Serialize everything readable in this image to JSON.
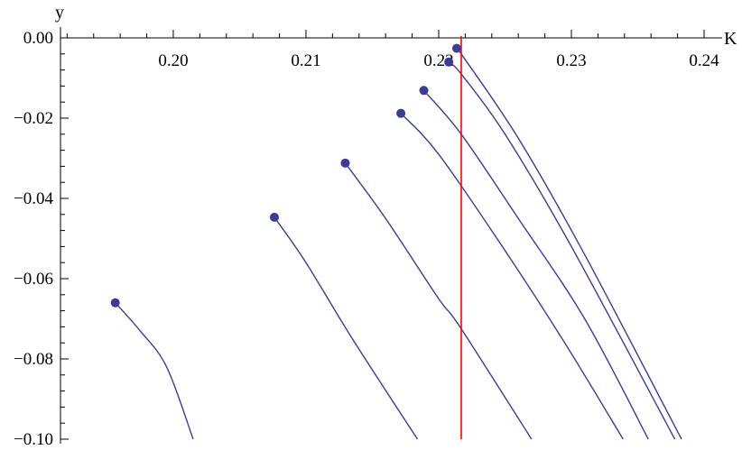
{
  "chart_data": {
    "type": "line",
    "title": "",
    "xlabel": "K",
    "ylabel": "y",
    "xlim": [
      0.1915,
      0.24
    ],
    "ylim": [
      -0.1,
      0.0
    ],
    "x_ticks": [
      0.2,
      0.21,
      0.22,
      0.23,
      0.24
    ],
    "x_tick_labels": [
      "0.20",
      "0.21",
      "0.22",
      "0.23",
      "0.24"
    ],
    "y_ticks": [
      0.0,
      -0.02,
      -0.04,
      -0.06,
      -0.08,
      -0.1
    ],
    "y_tick_labels": [
      "0.00",
      "−0.02",
      "−0.04",
      "−0.06",
      "−0.08",
      "−0.10"
    ],
    "grid": false,
    "legend": "none",
    "series_color": "#3b3b9a",
    "marker_color": "#3b3b9a",
    "vline": {
      "x": 0.2217,
      "color": "#ff0000"
    },
    "series": [
      {
        "marker": [
          0.19563,
          -0.066
        ],
        "x": [
          0.19563,
          0.1975,
          0.1995,
          0.2015
        ],
        "y": [
          -0.066,
          -0.073,
          -0.082,
          -0.1
        ]
      },
      {
        "marker": [
          0.20762,
          -0.0447
        ],
        "x": [
          0.20762,
          0.21,
          0.2135,
          0.2184
        ],
        "y": [
          -0.0447,
          -0.056,
          -0.075,
          -0.1
        ]
      },
      {
        "marker": [
          0.21296,
          -0.0312
        ],
        "x": [
          0.21296,
          0.216,
          0.22,
          0.2216,
          0.227
        ],
        "y": [
          -0.0312,
          -0.045,
          -0.065,
          -0.072,
          -0.1
        ]
      },
      {
        "marker": [
          0.21715,
          -0.0188
        ],
        "x": [
          0.21715,
          0.22,
          0.225,
          0.2295,
          0.2339
        ],
        "y": [
          -0.0188,
          -0.029,
          -0.053,
          -0.076,
          -0.1
        ]
      },
      {
        "marker": [
          0.21888,
          -0.0131
        ],
        "x": [
          0.21888,
          0.2217,
          0.226,
          0.231,
          0.2358
        ],
        "y": [
          -0.0131,
          -0.024,
          -0.045,
          -0.07,
          -0.1
        ]
      },
      {
        "marker": [
          0.22076,
          -0.006
        ],
        "x": [
          0.22076,
          0.2217,
          0.225,
          0.23,
          0.2378
        ],
        "y": [
          -0.006,
          -0.009,
          -0.024,
          -0.052,
          -0.1
        ]
      },
      {
        "marker": [
          0.22136,
          -0.0026
        ],
        "x": [
          0.22136,
          0.2217,
          0.226,
          0.231,
          0.2383
        ],
        "y": [
          -0.0026,
          -0.004,
          -0.025,
          -0.054,
          -0.1
        ]
      }
    ]
  }
}
